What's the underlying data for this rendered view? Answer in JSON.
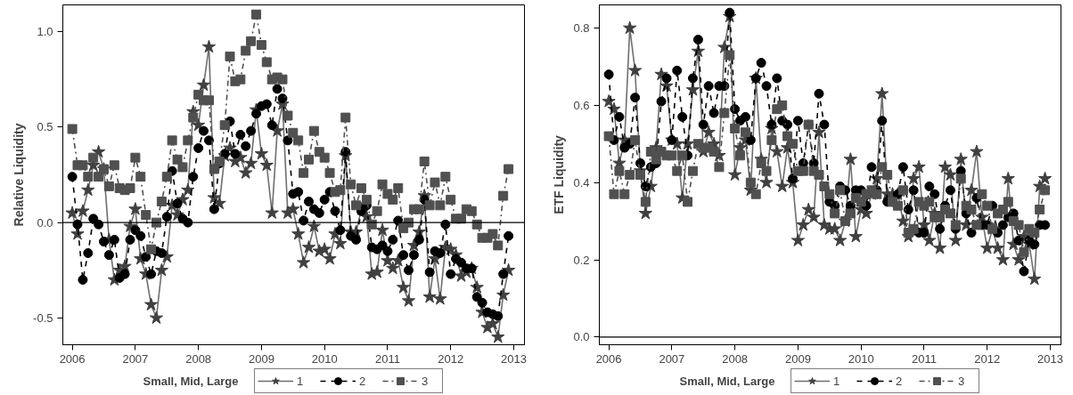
{
  "chart_data": [
    {
      "type": "line",
      "ylabel": "Relative Liquidity",
      "legend_title": "Small, Mid, Large",
      "legend": "bottom",
      "grid": false,
      "xlim": [
        2005.85,
        2013.17
      ],
      "xticks": [
        2006,
        2007,
        2008,
        2009,
        2010,
        2011,
        2012,
        2013
      ],
      "ylim": [
        -0.64,
        1.14
      ],
      "yticks": [
        {
          "value": -0.5,
          "label": "-0.5"
        },
        {
          "value": 0,
          "label": "0.0"
        },
        {
          "value": 0.5,
          "label": "0.5"
        },
        {
          "value": 1,
          "label": "1.0"
        }
      ],
      "ref_lines": [
        {
          "axis": "y",
          "value": 0,
          "label": null,
          "color": "#000000"
        }
      ],
      "x": [
        2006,
        2006.083,
        2006.167,
        2006.25,
        2006.333,
        2006.417,
        2006.5,
        2006.583,
        2006.667,
        2006.75,
        2006.833,
        2006.917,
        2007,
        2007.083,
        2007.167,
        2007.25,
        2007.333,
        2007.417,
        2007.5,
        2007.583,
        2007.667,
        2007.75,
        2007.833,
        2007.917,
        2008,
        2008.083,
        2008.167,
        2008.25,
        2008.333,
        2008.417,
        2008.5,
        2008.583,
        2008.667,
        2008.75,
        2008.833,
        2008.917,
        2009,
        2009.083,
        2009.167,
        2009.25,
        2009.333,
        2009.417,
        2009.5,
        2009.583,
        2009.667,
        2009.75,
        2009.833,
        2009.917,
        2010,
        2010.083,
        2010.167,
        2010.25,
        2010.333,
        2010.417,
        2010.5,
        2010.583,
        2010.667,
        2010.75,
        2010.833,
        2010.917,
        2011,
        2011.083,
        2011.167,
        2011.25,
        2011.333,
        2011.417,
        2011.5,
        2011.583,
        2011.667,
        2011.75,
        2011.833,
        2011.917,
        2012,
        2012.083,
        2012.167,
        2012.25,
        2012.333,
        2012.417,
        2012.5,
        2012.583,
        2012.667,
        2012.75,
        2012.833,
        2012.917
      ],
      "series": [
        {
          "name": "1",
          "color": "#404040",
          "marker": "star",
          "line_style": "solid",
          "values": [
            0.05,
            -0.06,
            0.06,
            0.17,
            0.3,
            0.37,
            0.28,
            -0.09,
            -0.3,
            -0.25,
            -0.23,
            -0.02,
            0.07,
            -0.19,
            -0.27,
            -0.43,
            -0.5,
            -0.25,
            -0.18,
            0.09,
            0.04,
            0.12,
            0.17,
            0.58,
            0.51,
            0.72,
            0.92,
            0.13,
            0.1,
            0.35,
            0.39,
            0.32,
            0.34,
            0.26,
            0.31,
            0.59,
            0.36,
            0.3,
            0.05,
            0.48,
            0.62,
            0.05,
            0.07,
            -0.06,
            -0.21,
            -0.13,
            -0.02,
            -0.15,
            -0.14,
            -0.19,
            -0.06,
            -0.11,
            0.35,
            -0.05,
            -0.05,
            0.07,
            0.03,
            -0.27,
            -0.26,
            -0.04,
            -0.2,
            -0.24,
            -0.2,
            -0.34,
            -0.41,
            -0.12,
            -0.05,
            0.14,
            -0.39,
            -0.19,
            -0.4,
            -0.13,
            -0.14,
            -0.17,
            -0.28,
            -0.26,
            -0.24,
            -0.34,
            -0.47,
            -0.55,
            -0.53,
            -0.6,
            -0.38,
            -0.25
          ]
        },
        {
          "name": "2",
          "color": "#000000",
          "marker": "circle",
          "line_style": "dashed",
          "values": [
            0.24,
            -0.01,
            -0.3,
            -0.16,
            0.02,
            -0.01,
            -0.1,
            -0.17,
            -0.09,
            -0.29,
            -0.27,
            -0.09,
            -0.04,
            -0.07,
            -0.18,
            -0.27,
            -0.15,
            -0.16,
            0.03,
            0.27,
            0.1,
            0.02,
            0.0,
            0.24,
            0.39,
            0.48,
            0.43,
            0.07,
            0.31,
            0.36,
            0.53,
            0.36,
            0.46,
            0.4,
            0.48,
            0.57,
            0.61,
            0.62,
            0.51,
            0.7,
            0.65,
            0.43,
            0.15,
            0.16,
            0.01,
            0.11,
            0.07,
            0.05,
            0.12,
            0.16,
            0.06,
            -0.04,
            0.37,
            -0.07,
            -0.09,
            0.06,
            0.09,
            -0.13,
            -0.14,
            -0.12,
            -0.15,
            -0.09,
            0.01,
            -0.17,
            -0.25,
            -0.17,
            -0.09,
            0.12,
            -0.26,
            -0.15,
            -0.16,
            -0.01,
            -0.27,
            -0.19,
            -0.21,
            -0.24,
            -0.24,
            -0.39,
            -0.42,
            -0.47,
            -0.48,
            -0.49,
            -0.27,
            -0.07
          ]
        },
        {
          "name": "3",
          "color": "#505050",
          "marker": "square",
          "line_style": "dashdot",
          "values": [
            0.49,
            0.3,
            0.3,
            0.24,
            0.34,
            0.24,
            0.28,
            0.19,
            0.3,
            0.18,
            0.17,
            0.18,
            0.34,
            0.24,
            0.04,
            -0.14,
            0.0,
            0.11,
            0.24,
            0.43,
            0.33,
            0.29,
            0.43,
            0.55,
            0.67,
            0.64,
            0.64,
            0.28,
            0.32,
            0.51,
            0.87,
            0.74,
            0.75,
            0.9,
            0.95,
            1.09,
            0.93,
            0.84,
            0.75,
            0.76,
            0.75,
            0.56,
            0.47,
            0.43,
            0.26,
            0.33,
            0.48,
            0.37,
            0.34,
            0.26,
            0.16,
            0.17,
            0.55,
            0.2,
            0.09,
            0.18,
            0.12,
            -0.01,
            0.06,
            0.2,
            0.15,
            0.12,
            0.18,
            -0.03,
            0.0,
            0.07,
            0.07,
            0.32,
            0.09,
            0.21,
            0.09,
            0.24,
            0.12,
            0.02,
            0.02,
            0.07,
            0.06,
            -0.01,
            -0.08,
            -0.08,
            -0.06,
            -0.12,
            0.14,
            0.28
          ]
        }
      ]
    },
    {
      "type": "line",
      "ylabel": "ETF Liquidity",
      "legend_title": "Small, Mid, Large",
      "legend": "bottom",
      "grid": false,
      "xlim": [
        2005.85,
        2013.17
      ],
      "xticks": [
        2006,
        2007,
        2008,
        2009,
        2010,
        2011,
        2012,
        2013
      ],
      "ylim": [
        -0.02,
        0.86
      ],
      "yticks": [
        {
          "value": 0,
          "label": "0.0"
        },
        0.2,
        0.4,
        0.6,
        0.8
      ],
      "ref_lines": [
        {
          "axis": "y",
          "value": 0,
          "label": null,
          "color": "#000000"
        }
      ],
      "x": [
        2006,
        2006.083,
        2006.167,
        2006.25,
        2006.333,
        2006.417,
        2006.5,
        2006.583,
        2006.667,
        2006.75,
        2006.833,
        2006.917,
        2007,
        2007.083,
        2007.167,
        2007.25,
        2007.333,
        2007.417,
        2007.5,
        2007.583,
        2007.667,
        2007.75,
        2007.833,
        2007.917,
        2008,
        2008.083,
        2008.167,
        2008.25,
        2008.333,
        2008.417,
        2008.5,
        2008.583,
        2008.667,
        2008.75,
        2008.833,
        2008.917,
        2009,
        2009.083,
        2009.167,
        2009.25,
        2009.333,
        2009.417,
        2009.5,
        2009.583,
        2009.667,
        2009.75,
        2009.833,
        2009.917,
        2010,
        2010.083,
        2010.167,
        2010.25,
        2010.333,
        2010.417,
        2010.5,
        2010.583,
        2010.667,
        2010.75,
        2010.833,
        2010.917,
        2011,
        2011.083,
        2011.167,
        2011.25,
        2011.333,
        2011.417,
        2011.5,
        2011.583,
        2011.667,
        2011.75,
        2011.833,
        2011.917,
        2012,
        2012.083,
        2012.167,
        2012.25,
        2012.333,
        2012.417,
        2012.5,
        2012.583,
        2012.667,
        2012.75,
        2012.833,
        2012.917
      ],
      "series": [
        {
          "name": "1",
          "color": "#404040",
          "marker": "star",
          "line_style": "solid",
          "values": [
            0.61,
            0.59,
            0.45,
            0.51,
            0.8,
            0.69,
            0.43,
            0.32,
            0.39,
            0.49,
            0.68,
            0.65,
            0.51,
            0.5,
            0.36,
            0.5,
            0.64,
            0.74,
            0.48,
            0.53,
            0.5,
            0.47,
            0.75,
            0.83,
            0.42,
            0.49,
            0.51,
            0.38,
            0.67,
            0.46,
            0.4,
            0.54,
            0.48,
            0.39,
            0.49,
            0.4,
            0.25,
            0.29,
            0.33,
            0.31,
            0.53,
            0.29,
            0.28,
            0.28,
            0.25,
            0.3,
            0.46,
            0.26,
            0.33,
            0.32,
            0.37,
            0.41,
            0.63,
            0.37,
            0.37,
            0.37,
            0.3,
            0.26,
            0.41,
            0.44,
            0.29,
            0.25,
            0.32,
            0.23,
            0.44,
            0.42,
            0.25,
            0.46,
            0.29,
            0.38,
            0.48,
            0.31,
            0.23,
            0.28,
            0.23,
            0.2,
            0.41,
            0.24,
            0.2,
            0.26,
            0.24,
            0.15,
            0.39,
            0.41
          ]
        },
        {
          "name": "2",
          "color": "#000000",
          "marker": "circle",
          "line_style": "dashed",
          "values": [
            0.68,
            0.51,
            0.57,
            0.49,
            0.5,
            0.62,
            0.45,
            0.39,
            0.44,
            0.45,
            0.61,
            0.67,
            0.51,
            0.69,
            0.57,
            0.47,
            0.67,
            0.77,
            0.55,
            0.65,
            0.58,
            0.65,
            0.65,
            0.84,
            0.59,
            0.56,
            0.57,
            0.51,
            0.67,
            0.71,
            0.65,
            0.55,
            0.67,
            0.56,
            0.55,
            0.41,
            0.56,
            0.45,
            0.55,
            0.45,
            0.63,
            0.55,
            0.35,
            0.34,
            0.39,
            0.38,
            0.34,
            0.38,
            0.38,
            0.34,
            0.44,
            0.38,
            0.56,
            0.35,
            0.35,
            0.37,
            0.44,
            0.33,
            0.38,
            0.27,
            0.27,
            0.39,
            0.37,
            0.28,
            0.34,
            0.38,
            0.28,
            0.43,
            0.32,
            0.27,
            0.36,
            0.29,
            0.29,
            0.34,
            0.27,
            0.29,
            0.31,
            0.32,
            0.25,
            0.17,
            0.25,
            0.24,
            0.29,
            0.29
          ]
        },
        {
          "name": "3",
          "color": "#505050",
          "marker": "square",
          "line_style": "dashdot",
          "values": [
            0.52,
            0.37,
            0.43,
            0.37,
            0.42,
            0.51,
            0.42,
            0.35,
            0.48,
            0.46,
            0.48,
            0.47,
            0.47,
            0.43,
            0.47,
            0.35,
            0.43,
            0.5,
            0.49,
            0.49,
            0.48,
            0.44,
            0.58,
            0.73,
            0.54,
            0.47,
            0.53,
            0.4,
            0.37,
            0.45,
            0.43,
            0.51,
            0.59,
            0.6,
            0.52,
            0.5,
            0.43,
            0.43,
            0.55,
            0.43,
            0.42,
            0.39,
            0.37,
            0.32,
            0.38,
            0.3,
            0.32,
            0.36,
            0.35,
            0.37,
            0.38,
            0.37,
            0.44,
            0.42,
            0.35,
            0.34,
            0.38,
            0.27,
            0.28,
            0.35,
            0.34,
            0.35,
            0.31,
            0.31,
            0.33,
            0.32,
            0.29,
            0.41,
            0.34,
            0.33,
            0.29,
            0.37,
            0.34,
            0.28,
            0.32,
            0.33,
            0.35,
            0.3,
            0.29,
            0.22,
            0.28,
            0.27,
            0.33,
            0.38
          ]
        }
      ]
    }
  ]
}
